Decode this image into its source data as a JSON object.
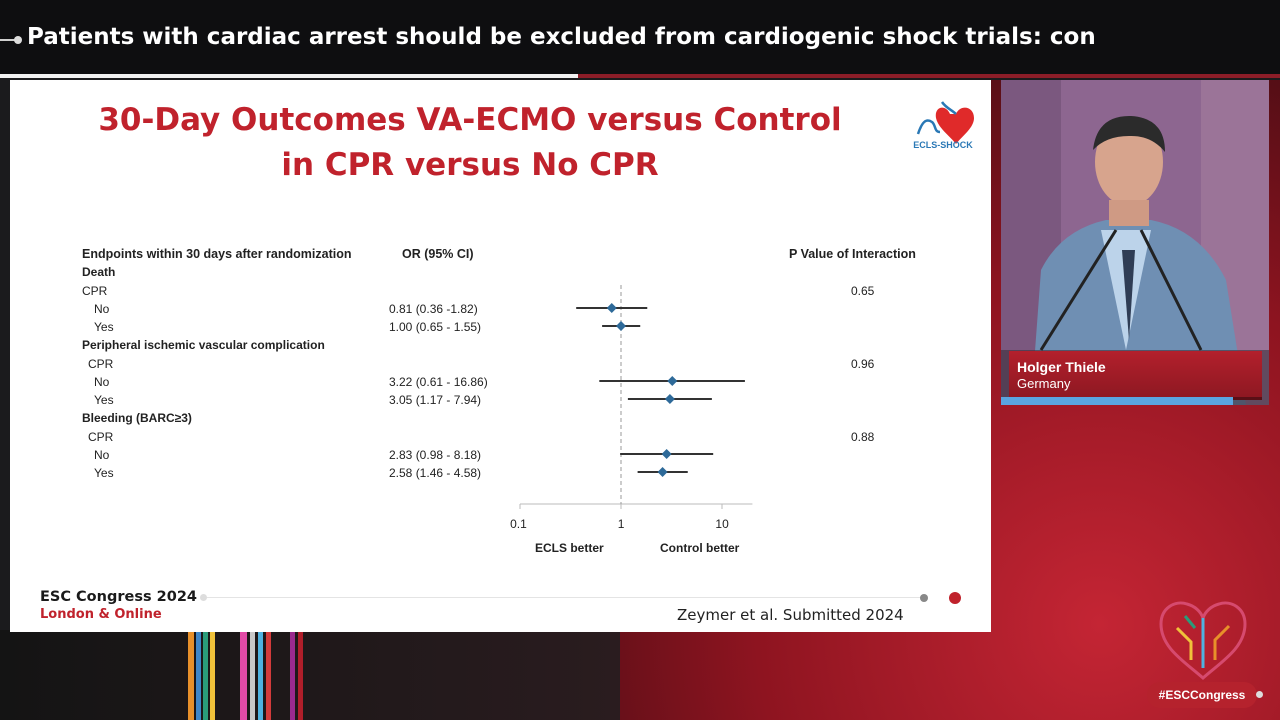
{
  "banner": {
    "title": "Patients with cardiac arrest should be excluded from cardiogenic shock trials: con"
  },
  "slide": {
    "title_line1": "30-Day Outcomes VA-ECMO versus Control",
    "title_line2": "in CPR versus No CPR",
    "logo_text": "ECLS-SHOCK",
    "col_endpoints": "Endpoints within 30 days after randomization",
    "col_or": "OR (95% CI)",
    "col_p": "P Value of Interaction",
    "congress": "ESC Congress 2024",
    "location_a": "London",
    "location_amp": "&",
    "location_b": "Online",
    "citation": "Zeymer et al. Submitted 2024"
  },
  "chart_data": {
    "type": "forest",
    "x_scale": "log",
    "xlim": [
      0.1,
      20
    ],
    "x_ticks": [
      "0.1",
      "1",
      "10"
    ],
    "reference_line": 1,
    "left_label": "ECLS better",
    "right_label": "Control better",
    "groups": [
      {
        "endpoint": "Death",
        "subgroup": "CPR",
        "p_interaction": "0.65",
        "rows": [
          {
            "label": "No",
            "or_text": "0.81 (0.36 -1.82)",
            "or": 0.81,
            "lo": 0.36,
            "hi": 1.82
          },
          {
            "label": "Yes",
            "or_text": "1.00 (0.65 - 1.55)",
            "or": 1.0,
            "lo": 0.65,
            "hi": 1.55
          }
        ]
      },
      {
        "endpoint": "Peripheral ischemic vascular complication",
        "subgroup": "CPR",
        "p_interaction": "0.96",
        "rows": [
          {
            "label": "No",
            "or_text": "3.22 (0.61 - 16.86)",
            "or": 3.22,
            "lo": 0.61,
            "hi": 16.86
          },
          {
            "label": "Yes",
            "or_text": "3.05 (1.17 - 7.94)",
            "or": 3.05,
            "lo": 1.17,
            "hi": 7.94
          }
        ]
      },
      {
        "endpoint": "Bleeding (BARC≥3)",
        "subgroup": "CPR",
        "p_interaction": "0.88",
        "rows": [
          {
            "label": "No",
            "or_text": "2.83 (0.98 - 8.18)",
            "or": 2.83,
            "lo": 0.98,
            "hi": 8.18
          },
          {
            "label": "Yes",
            "or_text": "2.58 (1.46 - 4.58)",
            "or": 2.58,
            "lo": 1.46,
            "hi": 4.58
          }
        ]
      }
    ]
  },
  "speaker": {
    "name": "Holger Thiele",
    "country": "Germany"
  },
  "hashtag": "#ESCCongress",
  "colors": {
    "accent_red": "#c0222c",
    "marker_blue": "#2e6a99",
    "ci_line": "#333333"
  }
}
